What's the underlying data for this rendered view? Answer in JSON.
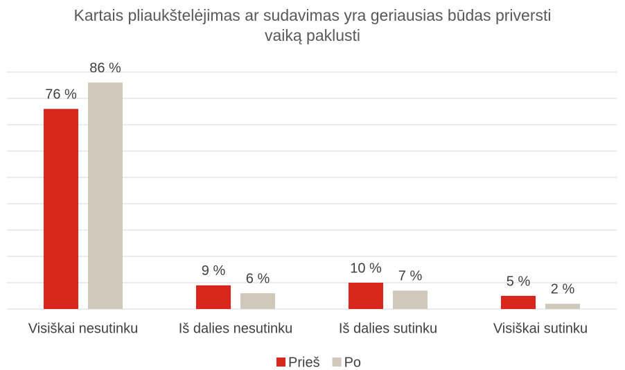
{
  "chart_data": {
    "type": "bar",
    "title": "Kartais pliaukštelėjimas ar sudavimas yra geriausias būdas priversti vaiką paklusti",
    "categories": [
      "Visiškai nesutinku",
      "Iš dalies nesutinku",
      "Iš dalies sutinku",
      "Visiškai sutinku"
    ],
    "series": [
      {
        "name": "Prieš",
        "color": "#d9261c",
        "values": [
          76,
          9,
          10,
          5
        ],
        "value_labels": [
          "76 %",
          "9 %",
          "10 %",
          "5 %"
        ]
      },
      {
        "name": "Po",
        "color": "#d0c9bb",
        "values": [
          86,
          6,
          7,
          2
        ],
        "value_labels": [
          "86 %",
          "6 %",
          "7 %",
          "2 %"
        ]
      }
    ],
    "ylim": [
      0,
      90
    ],
    "yticks": [
      0,
      10,
      20,
      30,
      40,
      50,
      60,
      70,
      80,
      90
    ],
    "grid": true,
    "legend": "bottom"
  }
}
